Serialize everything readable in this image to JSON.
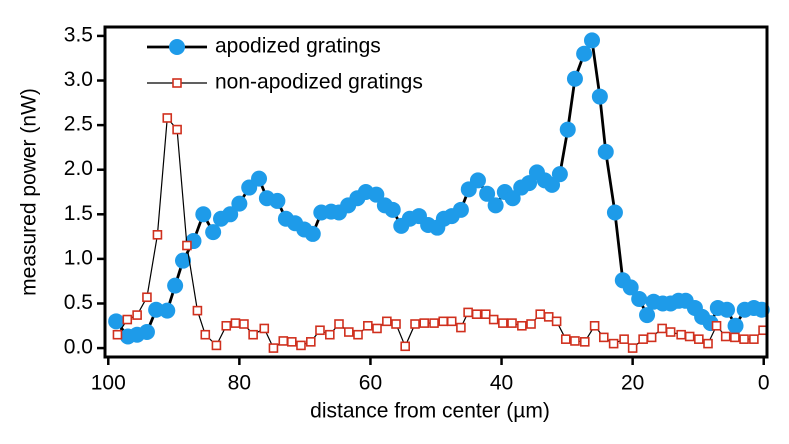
{
  "chart_data": {
    "type": "line",
    "xlabel": "distance from center (µm)",
    "ylabel": "measured power (nW)",
    "xlim": [
      100.5,
      -0.5
    ],
    "ylim": [
      -0.1,
      3.6
    ],
    "xticks": [
      100,
      80,
      60,
      40,
      20,
      0
    ],
    "yticks": [
      {
        "value": 0,
        "label": "0.0"
      },
      0.5,
      {
        "value": 1,
        "label": "1.0"
      },
      1.5,
      {
        "value": 2,
        "label": "2.0"
      },
      2.5,
      {
        "value": 3,
        "label": "3.0"
      },
      3.5
    ],
    "legend": "top-left",
    "series": [
      {
        "name": "apodized gratings",
        "color": "#1e9be9",
        "marker": "circle",
        "line_color": "#000000",
        "x": [
          98.8,
          97.0,
          95.6,
          94.1,
          92.7,
          91.0,
          89.8,
          88.6,
          87.0,
          85.5,
          84.0,
          82.8,
          81.4,
          80.0,
          78.5,
          77.0,
          75.8,
          74.2,
          72.9,
          71.5,
          70.1,
          68.8,
          67.5,
          66.0,
          64.8,
          63.4,
          62.0,
          60.7,
          59.1,
          57.8,
          56.6,
          55.3,
          54.0,
          52.6,
          51.2,
          49.8,
          48.8,
          47.6,
          46.2,
          45.0,
          43.6,
          42.2,
          40.9,
          39.5,
          38.3,
          37.0,
          35.8,
          34.6,
          33.4,
          32.3,
          31.1,
          29.9,
          28.8,
          27.4,
          26.2,
          25.0,
          24.1,
          22.7,
          21.5,
          20.3,
          19.0,
          17.8,
          16.8,
          15.4,
          14.2,
          13.0,
          11.9,
          10.5,
          9.4,
          8.1,
          7.0,
          5.6,
          4.3,
          2.9,
          1.5,
          0.3
        ],
        "values": [
          0.3,
          0.13,
          0.15,
          0.18,
          0.43,
          0.42,
          0.7,
          0.98,
          1.2,
          1.5,
          1.3,
          1.45,
          1.5,
          1.62,
          1.8,
          1.9,
          1.68,
          1.65,
          1.45,
          1.4,
          1.33,
          1.28,
          1.52,
          1.53,
          1.52,
          1.6,
          1.68,
          1.75,
          1.72,
          1.6,
          1.55,
          1.37,
          1.45,
          1.48,
          1.38,
          1.35,
          1.45,
          1.48,
          1.55,
          1.78,
          1.88,
          1.73,
          1.6,
          1.75,
          1.68,
          1.8,
          1.85,
          1.97,
          1.88,
          1.83,
          1.95,
          2.45,
          3.02,
          3.3,
          3.45,
          2.82,
          2.2,
          1.52,
          0.76,
          0.68,
          0.55,
          0.37,
          0.52,
          0.5,
          0.5,
          0.53,
          0.53,
          0.45,
          0.35,
          0.28,
          0.45,
          0.43,
          0.25,
          0.43,
          0.45,
          0.43
        ]
      },
      {
        "name": "non-apodized gratings",
        "color": "#d0301e",
        "marker": "square",
        "line_color": "#000000",
        "x": [
          98.6,
          97.1,
          95.6,
          94.1,
          92.5,
          91.0,
          89.5,
          88.0,
          86.4,
          85.2,
          83.5,
          82.0,
          80.6,
          79.3,
          77.9,
          76.2,
          74.8,
          73.3,
          72.0,
          70.6,
          69.1,
          67.7,
          66.2,
          64.8,
          63.3,
          61.9,
          60.4,
          59.0,
          57.5,
          56.1,
          54.7,
          53.2,
          51.8,
          50.3,
          48.9,
          47.6,
          46.2,
          45.1,
          43.8,
          42.4,
          41.2,
          39.8,
          38.4,
          36.9,
          35.5,
          34.1,
          32.8,
          31.6,
          30.2,
          28.8,
          27.3,
          25.8,
          24.4,
          22.9,
          21.3,
          20.0,
          18.4,
          17.1,
          15.5,
          14.2,
          12.6,
          11.3,
          9.9,
          8.5,
          7.2,
          5.8,
          4.4,
          3.0,
          1.5,
          0.1
        ],
        "values": [
          0.15,
          0.32,
          0.37,
          0.57,
          1.27,
          2.58,
          2.45,
          1.15,
          0.42,
          0.15,
          0.03,
          0.25,
          0.28,
          0.27,
          0.15,
          0.22,
          0.0,
          0.08,
          0.07,
          0.03,
          0.07,
          0.2,
          0.15,
          0.27,
          0.18,
          0.15,
          0.25,
          0.22,
          0.3,
          0.27,
          0.02,
          0.27,
          0.28,
          0.28,
          0.3,
          0.3,
          0.23,
          0.4,
          0.38,
          0.38,
          0.32,
          0.28,
          0.28,
          0.25,
          0.27,
          0.38,
          0.35,
          0.3,
          0.1,
          0.08,
          0.07,
          0.25,
          0.12,
          0.05,
          0.1,
          0.0,
          0.1,
          0.12,
          0.22,
          0.18,
          0.15,
          0.13,
          0.1,
          0.05,
          0.25,
          0.13,
          0.12,
          0.1,
          0.1,
          0.2
        ]
      }
    ]
  }
}
